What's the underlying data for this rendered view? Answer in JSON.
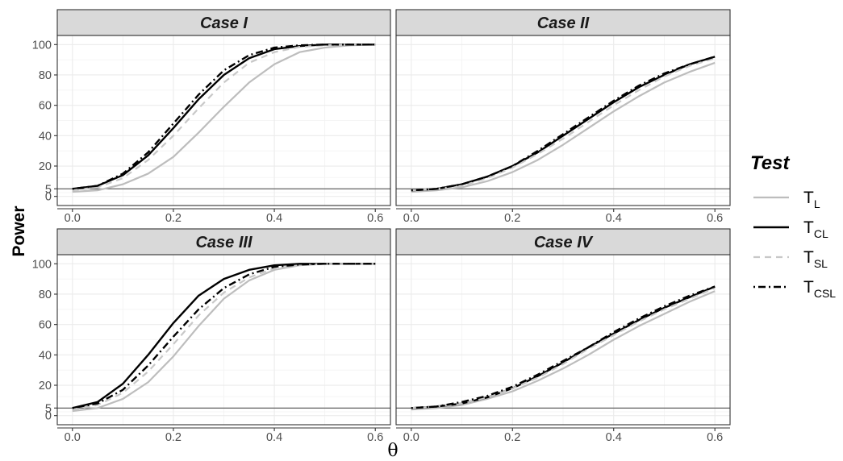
{
  "chart_data": {
    "type": "line",
    "xlabel": "θ",
    "ylabel": "Power",
    "xlim": [
      -0.03,
      0.63
    ],
    "ylim": [
      -6,
      106
    ],
    "x_ticks": [
      0.0,
      0.2,
      0.4,
      0.6
    ],
    "x_tick_labels": [
      "0.0",
      "0.2",
      "0.4",
      "0.6"
    ],
    "y_ticks": [
      0,
      5,
      20,
      40,
      60,
      80,
      100
    ],
    "y_tick_labels": [
      "0",
      "5",
      "20",
      "40",
      "60",
      "80",
      "100"
    ],
    "reference_line_y": 5,
    "grid": true,
    "legend": {
      "title": "Test",
      "position": "right",
      "entries": [
        {
          "key": "TL",
          "main": "T",
          "sub": "L",
          "color": "#bdbdbd",
          "dash": "solid"
        },
        {
          "key": "TCL",
          "main": "T",
          "sub": "CL",
          "color": "#000000",
          "dash": "solid"
        },
        {
          "key": "TSL",
          "main": "T",
          "sub": "SL",
          "color": "#c8c8c8",
          "dash": "dashed"
        },
        {
          "key": "TCSL",
          "main": "T",
          "sub": "CSL",
          "color": "#000000",
          "dash": "dotdash"
        }
      ]
    },
    "x": [
      0.0,
      0.05,
      0.1,
      0.15,
      0.2,
      0.25,
      0.3,
      0.35,
      0.4,
      0.45,
      0.5,
      0.55,
      0.6
    ],
    "panels": [
      {
        "title": "Case I",
        "series": [
          {
            "key": "TL",
            "values": [
              3,
              4,
              8,
              15,
              26,
              42,
              59,
              75,
              87,
              95,
              98,
              99.5,
              100
            ]
          },
          {
            "key": "TCL",
            "values": [
              5,
              7,
              14,
              27,
              45,
              64,
              80,
              91,
              97,
              99,
              100,
              100,
              100
            ]
          },
          {
            "key": "TSL",
            "values": [
              4,
              6,
              12,
              24,
              40,
              58,
              75,
              88,
              95,
              98.5,
              99.5,
              100,
              100
            ]
          },
          {
            "key": "TCSL",
            "values": [
              5,
              7,
              15,
              29,
              48,
              67,
              83,
              93,
              98,
              99.5,
              100,
              100,
              100
            ]
          }
        ]
      },
      {
        "title": "Case II",
        "series": [
          {
            "key": "TL",
            "values": [
              3,
              4,
              6,
              10,
              16,
              24,
              34,
              45,
              56,
              66,
              75,
              82,
              88
            ]
          },
          {
            "key": "TCL",
            "values": [
              4,
              5,
              8,
              13,
              20,
              29,
              40,
              51,
              62,
              72,
              80,
              87,
              92
            ]
          },
          {
            "key": "TSL",
            "values": [
              4,
              5,
              7,
              12,
              19,
              28,
              38,
              49,
              60,
              70,
              79,
              86,
              91
            ]
          },
          {
            "key": "TCSL",
            "values": [
              4,
              5,
              8,
              13,
              20,
              30,
              41,
              52,
              63,
              73,
              81,
              87,
              92
            ]
          }
        ]
      },
      {
        "title": "Case III",
        "series": [
          {
            "key": "TL",
            "values": [
              3,
              5,
              11,
              22,
              39,
              59,
              77,
              89,
              96,
              99,
              100,
              100,
              100
            ]
          },
          {
            "key": "TCL",
            "values": [
              5,
              9,
              21,
              40,
              61,
              79,
              90,
              96,
              99,
              100,
              100,
              100,
              100
            ]
          },
          {
            "key": "TSL",
            "values": [
              4,
              7,
              15,
              29,
              47,
              66,
              81,
              91,
              97,
              99,
              100,
              100,
              100
            ]
          },
          {
            "key": "TCSL",
            "values": [
              5,
              8,
              17,
              33,
              52,
              70,
              84,
              93,
              98,
              99.5,
              100,
              100,
              100
            ]
          }
        ]
      },
      {
        "title": "Case IV",
        "series": [
          {
            "key": "TL",
            "values": [
              4,
              5,
              7,
              11,
              16,
              23,
              31,
              40,
              50,
              59,
              67,
              75,
              82
            ]
          },
          {
            "key": "TCL",
            "values": [
              5,
              6,
              8,
              12,
              18,
              26,
              35,
              45,
              54,
              63,
              71,
              78,
              85
            ]
          },
          {
            "key": "TSL",
            "values": [
              5,
              6,
              8,
              12,
              18,
              25,
              34,
              44,
              53,
              62,
              70,
              77,
              84
            ]
          },
          {
            "key": "TCSL",
            "values": [
              5,
              6,
              9,
              13,
              19,
              27,
              36,
              45,
              55,
              64,
              72,
              79,
              85
            ]
          }
        ]
      }
    ]
  }
}
